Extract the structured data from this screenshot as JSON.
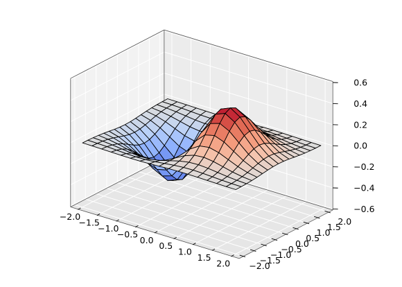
{
  "chart_data": {
    "type": "surface3d",
    "function": "z = x * exp(-x^2 - y^2)",
    "colormap": "coolwarm",
    "x": [
      -2.0,
      -1.75,
      -1.5,
      -1.25,
      -1.0,
      -0.75,
      -0.5,
      -0.25,
      0.0,
      0.25,
      0.5,
      0.75,
      1.0,
      1.25,
      1.5,
      1.75,
      2.0
    ],
    "y": [
      -2.0,
      -1.75,
      -1.5,
      -1.25,
      -1.0,
      -0.75,
      -0.5,
      -0.25,
      0.0,
      0.25,
      0.5,
      0.75,
      1.0,
      1.25,
      1.5,
      1.75,
      2.0
    ],
    "xlim": [
      -2.0,
      2.0
    ],
    "ylim": [
      -2.0,
      2.0
    ],
    "zlim": [
      -0.6,
      0.6
    ],
    "x_ticks": [
      "−2.0",
      "−1.5",
      "−1.0",
      "−0.5",
      "0.0",
      "0.5",
      "1.0",
      "1.5",
      "2.0"
    ],
    "y_ticks": [
      "−2.0",
      "−1.5",
      "−1.0",
      "−0.5",
      "0.0",
      "0.5",
      "1.0",
      "1.5",
      "2.0"
    ],
    "z_ticks": [
      "−0.6",
      "−0.4",
      "−0.2",
      "0.0",
      "0.2",
      "0.4",
      "0.6"
    ],
    "grid": true,
    "title": "",
    "xlabel": "",
    "ylabel": "",
    "zlabel": ""
  }
}
